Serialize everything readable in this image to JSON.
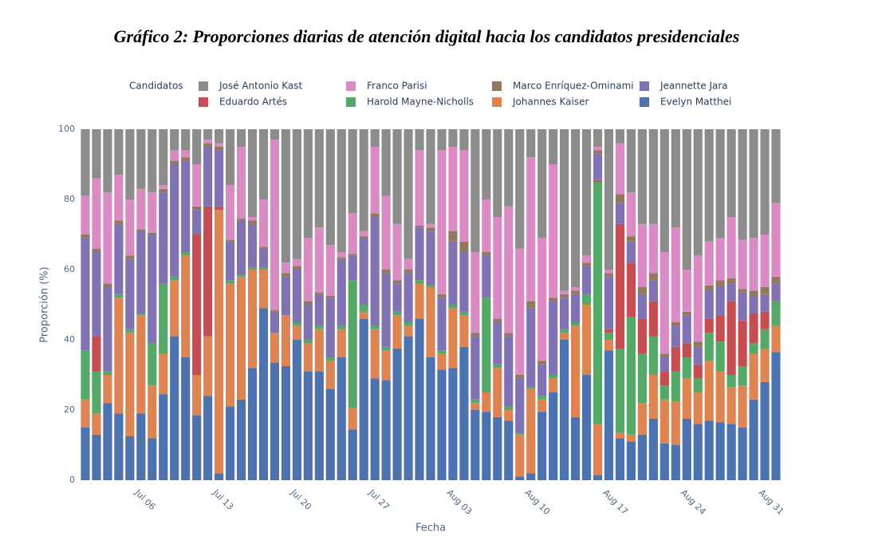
{
  "chart_data": {
    "type": "stacked_bar",
    "title": "Gráfico 2: Proporciones diarias de atención digital hacia los candidatos presidenciales",
    "legend_title": "Candidatos",
    "x_label": "Fecha",
    "y_label": "Proporción (%)",
    "categories": [
      null,
      null,
      null,
      null,
      null,
      "Jul 06",
      null,
      null,
      null,
      null,
      null,
      null,
      "Jul 13",
      null,
      null,
      null,
      null,
      null,
      null,
      "Jul 20",
      null,
      null,
      null,
      null,
      null,
      null,
      "Jul 27",
      null,
      null,
      null,
      null,
      null,
      null,
      "Aug 03",
      null,
      null,
      null,
      null,
      null,
      null,
      "Aug 10",
      null,
      null,
      null,
      null,
      null,
      null,
      "Aug 17",
      null,
      null,
      null,
      null,
      null,
      null,
      "Aug 24",
      null,
      null,
      null,
      null,
      null,
      null,
      "Aug 31",
      null
    ],
    "ylim": [
      0,
      100
    ],
    "yticks": [
      0,
      20,
      40,
      60,
      80,
      100
    ],
    "series": [
      {
        "name": "Evelyn Matthei",
        "color": "#4c72b0",
        "values": [
          15,
          13,
          22,
          19,
          12.5,
          19,
          12,
          24.5,
          41,
          35,
          18.5,
          24,
          2,
          21,
          23,
          32,
          49,
          33.5,
          32.5,
          40,
          31,
          31,
          26,
          35,
          14.5,
          46,
          29,
          28.5,
          37.5,
          41,
          46,
          35,
          31.5,
          32,
          38,
          20,
          19.5,
          18,
          17,
          1,
          2,
          19.5,
          25,
          40,
          18,
          30,
          1.5,
          37,
          12,
          11,
          13,
          17.5,
          10.5,
          10,
          17.5,
          16,
          17,
          16.5,
          16,
          15,
          23,
          28,
          36.5
        ]
      },
      {
        "name": "Johannes Kaiser",
        "color": "#dd8452",
        "values": [
          8,
          6,
          8,
          33,
          29.5,
          28,
          15,
          11.5,
          16,
          29,
          11.5,
          17,
          75,
          35,
          35,
          28,
          11,
          8.5,
          14.5,
          4,
          8,
          12,
          8,
          8,
          6,
          2,
          14,
          8.5,
          9.5,
          3,
          10,
          20,
          4.5,
          17,
          9,
          2,
          5.5,
          14,
          3,
          12,
          24,
          3.5,
          4,
          2,
          26,
          20,
          14.5,
          3,
          1.5,
          2,
          9,
          12.5,
          12.5,
          12.5,
          11.5,
          9,
          17,
          14.5,
          10.5,
          12,
          13,
          9.5,
          7.5
        ]
      },
      {
        "name": "Harold Mayne-Nicholls",
        "color": "#55a868",
        "values": [
          14,
          12,
          1,
          1,
          1,
          0.5,
          12,
          20,
          1,
          1,
          0,
          0,
          0,
          1,
          0.5,
          0.5,
          0.5,
          0,
          0,
          1,
          1,
          1,
          1,
          1,
          36.5,
          2,
          1,
          1,
          1,
          1,
          1,
          0.5,
          1,
          1,
          1,
          1,
          27,
          1,
          1,
          0.5,
          0.5,
          1,
          1,
          1,
          1,
          3,
          69,
          2,
          24,
          33.5,
          14,
          11,
          4,
          8.5,
          6,
          4,
          8,
          8.5,
          3.5,
          5.5,
          3,
          5.5,
          7
        ]
      },
      {
        "name": "Eduardo Artés",
        "color": "#c44e52",
        "values": [
          0,
          10,
          0,
          0,
          0,
          0,
          0,
          0,
          0,
          0,
          40,
          37,
          1,
          0,
          0,
          0,
          0,
          0,
          0,
          0,
          0,
          0,
          0,
          0,
          0,
          0,
          0,
          0,
          0,
          0,
          0,
          0,
          0,
          0,
          0,
          0,
          0,
          0,
          0,
          0,
          0,
          0,
          0,
          0,
          0,
          0,
          0.5,
          1,
          35.5,
          15.5,
          10,
          10,
          4,
          7,
          4,
          4,
          4,
          7.5,
          21,
          13,
          8.5,
          5,
          0
        ]
      },
      {
        "name": "Jeannette Jara",
        "color": "#8172b3",
        "values": [
          32,
          24,
          24,
          20,
          20,
          23.5,
          31,
          26,
          32,
          26,
          7,
          17,
          16,
          11,
          15.5,
          12.5,
          5.5,
          6,
          11,
          15,
          10,
          9,
          17,
          19,
          7,
          19,
          31,
          21,
          8,
          14,
          15,
          15.5,
          15,
          18,
          17,
          18,
          12,
          12,
          20,
          15.5,
          22.5,
          9,
          21,
          9,
          8,
          8,
          7.5,
          15,
          6,
          6,
          7,
          6,
          4,
          6,
          8,
          5,
          8,
          8,
          5,
          8,
          5,
          5,
          5
        ]
      },
      {
        "name": "Marco Enríquez-Ominami",
        "color": "#937860",
        "values": [
          1,
          1,
          1,
          1,
          1,
          0.5,
          0.5,
          1,
          1,
          1,
          1,
          1,
          1,
          0.5,
          0.5,
          1,
          0.5,
          0.5,
          1,
          1,
          1,
          0.5,
          0.5,
          0.5,
          0.5,
          0.5,
          1,
          1,
          1,
          1,
          0.5,
          1,
          1,
          3,
          3,
          1,
          1,
          1,
          1,
          1,
          2,
          1,
          1,
          1,
          1,
          1,
          1,
          1,
          2.5,
          1.5,
          2,
          2,
          1,
          1,
          1,
          1.5,
          1.5,
          2,
          1.5,
          1,
          1.5,
          2,
          2
        ]
      },
      {
        "name": "Franco Parisi",
        "color": "#da8bc3",
        "values": [
          11,
          20,
          26,
          13,
          16,
          11.5,
          11.5,
          1,
          3,
          2,
          12,
          1,
          1,
          15.5,
          20.5,
          1,
          13.5,
          48.5,
          3,
          2,
          18,
          18.5,
          14.5,
          1.5,
          11.5,
          1.5,
          19,
          21,
          16,
          3,
          21.5,
          1,
          41,
          24,
          26,
          23,
          15,
          29,
          36,
          36,
          41,
          35,
          38,
          1,
          1,
          2,
          1,
          1,
          14.5,
          12.5,
          18,
          14,
          29,
          27,
          12,
          24.5,
          12.5,
          12,
          17.5,
          14,
          15,
          15,
          21
        ]
      },
      {
        "name": "José Antonio Kast",
        "color": "#8c8c8c",
        "values": [
          19,
          14,
          18,
          13,
          20,
          17,
          18,
          16,
          6,
          6,
          10,
          3,
          4,
          16,
          5,
          25,
          20,
          3,
          38,
          37,
          31,
          28,
          33,
          35,
          24,
          29,
          5,
          19,
          27,
          37,
          6,
          27,
          6,
          5,
          6,
          35,
          20,
          25,
          22,
          34,
          8,
          31,
          10,
          46,
          45,
          36,
          5,
          40,
          4,
          18,
          27,
          27,
          35,
          28,
          40,
          36,
          32,
          31,
          25,
          31.5,
          31,
          30,
          21
        ]
      }
    ]
  }
}
